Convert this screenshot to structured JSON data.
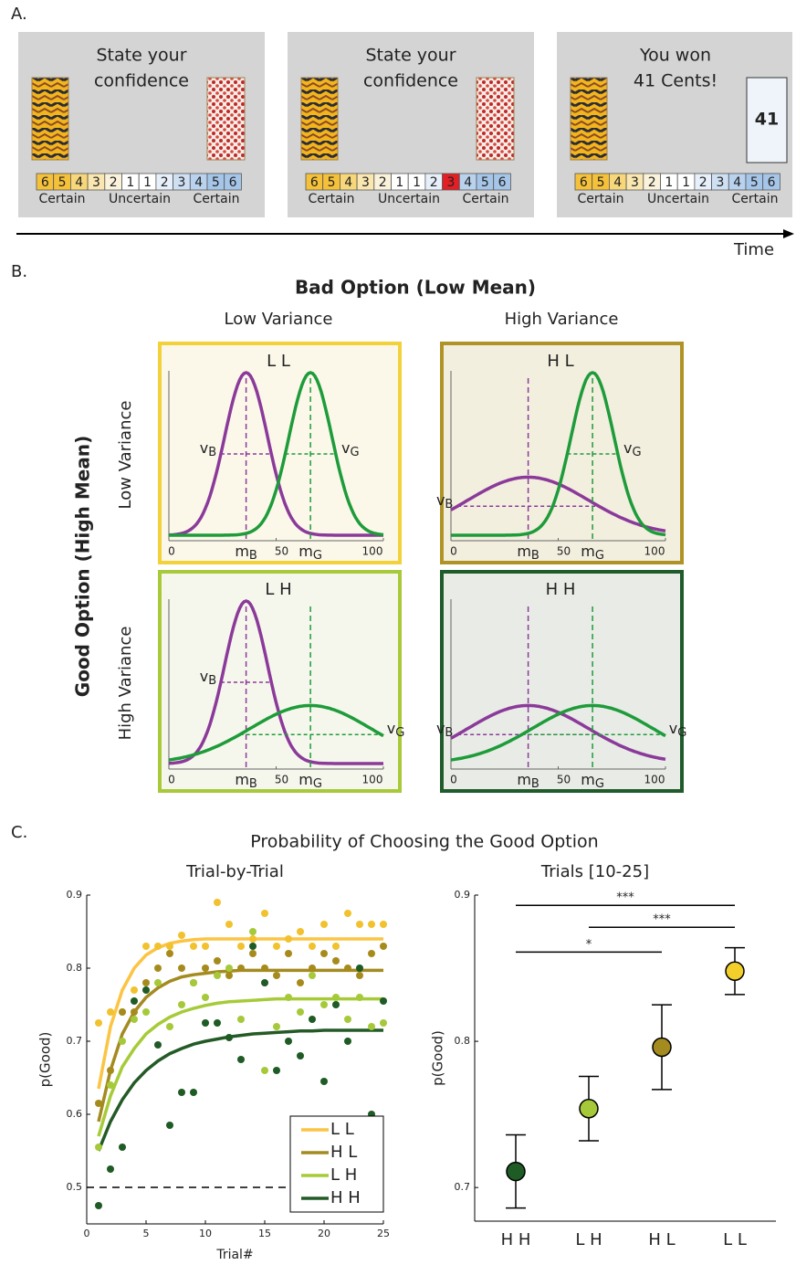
{
  "panel_a": {
    "label": "A.",
    "time": "Time",
    "screens": [
      {
        "lines": [
          "State your",
          "confidence"
        ]
      },
      {
        "lines": [
          "State your",
          "confidence"
        ]
      },
      {
        "lines": [
          "You won",
          "41 Cents!"
        ]
      }
    ],
    "scale": [
      "6",
      "5",
      "4",
      "3",
      "2",
      "1",
      "1",
      "2",
      "3",
      "4",
      "5",
      "6"
    ],
    "scale_labels": [
      "Certain",
      "Uncertain",
      "Certain"
    ],
    "reward": "41"
  },
  "panel_b": {
    "label": "B.",
    "title": "Bad Option (Low Mean)",
    "column_headers": [
      "Low Variance",
      "High Variance"
    ],
    "row_title": "Good Option (High Mean)",
    "row_headers": [
      "Low Variance",
      "High Variance"
    ],
    "xticks": [
      0,
      50,
      100
    ],
    "means": {
      "bad": 36,
      "good": 66
    },
    "symbols": {
      "mean": "m",
      "variance": "v",
      "bad": "B",
      "good": "G"
    },
    "bad_color": "#8b3a9a",
    "good_color": "#1e9b3a",
    "panels": [
      {
        "label": "L L",
        "bad_sd": 10,
        "good_sd": 10,
        "border": "#f2d13a",
        "fill": "#fbf8ea"
      },
      {
        "label": "H L",
        "bad_sd": 28,
        "good_sd": 10,
        "border": "#b09327",
        "fill": "#f3efdf"
      },
      {
        "label": "L H",
        "bad_sd": 10,
        "good_sd": 28,
        "border": "#a8c93a",
        "fill": "#f6f7ec"
      },
      {
        "label": "H H",
        "bad_sd": 28,
        "good_sd": 28,
        "border": "#1f5b2b",
        "fill": "#e9ece6"
      }
    ]
  },
  "panel_c": {
    "label": "C.",
    "title": "Probability of Choosing the Good Option"
  },
  "chart_data": [
    {
      "type": "scatter",
      "title": "Trial-by-Trial",
      "x_label": "Trial#",
      "y_label": "p(Good)",
      "x": [
        1,
        2,
        3,
        4,
        5,
        6,
        7,
        8,
        9,
        10,
        11,
        12,
        13,
        14,
        15,
        16,
        17,
        18,
        19,
        20,
        21,
        22,
        23,
        24,
        25
      ],
      "xlim": [
        0,
        25
      ],
      "xticks": [
        0,
        5,
        10,
        15,
        20,
        25
      ],
      "ylim": [
        0.45,
        0.9
      ],
      "yticks": [
        0.5,
        0.6,
        0.7,
        0.8,
        0.9
      ],
      "reference_line": 0.5,
      "legend": "lower right",
      "series": [
        {
          "name": "L L",
          "color": "#f2c12e",
          "line_color": "#fbc443",
          "values": [
            0.725,
            0.74,
            0.74,
            0.77,
            0.83,
            0.83,
            0.83,
            0.845,
            0.83,
            0.83,
            0.89,
            0.86,
            0.83,
            0.84,
            0.875,
            0.83,
            0.84,
            0.85,
            0.83,
            0.86,
            0.83,
            0.875,
            0.86,
            0.86,
            0.86
          ],
          "fit": [
            0.635,
            0.72,
            0.77,
            0.8,
            0.818,
            0.828,
            0.834,
            0.837,
            0.839,
            0.84,
            0.84,
            0.84,
            0.84,
            0.84,
            0.84,
            0.84,
            0.84,
            0.84,
            0.84,
            0.84,
            0.84,
            0.84,
            0.84,
            0.84,
            0.84
          ]
        },
        {
          "name": "H L",
          "color": "#a68b1c",
          "line_color": "#a38b1f",
          "values": [
            0.615,
            0.66,
            0.74,
            0.74,
            0.78,
            0.8,
            0.82,
            0.8,
            0.78,
            0.8,
            0.81,
            0.79,
            0.8,
            0.82,
            0.8,
            0.79,
            0.82,
            0.78,
            0.8,
            0.82,
            0.81,
            0.8,
            0.79,
            0.82,
            0.83
          ],
          "fit": [
            0.59,
            0.66,
            0.71,
            0.74,
            0.76,
            0.773,
            0.782,
            0.788,
            0.791,
            0.793,
            0.795,
            0.796,
            0.797,
            0.797,
            0.797,
            0.797,
            0.797,
            0.797,
            0.797,
            0.797,
            0.797,
            0.797,
            0.797,
            0.797,
            0.797
          ]
        },
        {
          "name": "L H",
          "color": "#a6c93a",
          "line_color": "#a6cb38",
          "values": [
            0.555,
            0.64,
            0.7,
            0.73,
            0.74,
            0.78,
            0.72,
            0.75,
            0.78,
            0.76,
            0.79,
            0.8,
            0.73,
            0.85,
            0.66,
            0.72,
            0.76,
            0.74,
            0.79,
            0.75,
            0.76,
            0.73,
            0.76,
            0.72,
            0.725
          ],
          "fit": [
            0.57,
            0.625,
            0.665,
            0.69,
            0.71,
            0.723,
            0.733,
            0.74,
            0.745,
            0.749,
            0.752,
            0.754,
            0.755,
            0.756,
            0.757,
            0.758,
            0.758,
            0.758,
            0.758,
            0.758,
            0.758,
            0.758,
            0.758,
            0.758,
            0.758
          ]
        },
        {
          "name": "H H",
          "color": "#1e5b25",
          "line_color": "#245a25",
          "values": [
            0.475,
            0.525,
            0.555,
            0.755,
            0.77,
            0.695,
            0.585,
            0.63,
            0.63,
            0.725,
            0.725,
            0.705,
            0.675,
            0.83,
            0.78,
            0.66,
            0.7,
            0.68,
            0.73,
            0.645,
            0.75,
            0.7,
            0.8,
            0.6,
            0.755
          ],
          "fit": [
            0.55,
            0.59,
            0.62,
            0.643,
            0.66,
            0.673,
            0.683,
            0.69,
            0.696,
            0.7,
            0.703,
            0.706,
            0.708,
            0.71,
            0.711,
            0.712,
            0.713,
            0.714,
            0.714,
            0.715,
            0.715,
            0.715,
            0.715,
            0.715,
            0.715
          ]
        }
      ]
    },
    {
      "type": "errorbar",
      "title": "Trials [10-25]",
      "y_label": "p(Good)",
      "categories": [
        "H H",
        "L H",
        "H L",
        "L L"
      ],
      "values": [
        0.711,
        0.754,
        0.796,
        0.848
      ],
      "errors": [
        0.025,
        0.022,
        0.029,
        0.016
      ],
      "colors": [
        "#1e5b25",
        "#a6c93a",
        "#a38b1f",
        "#f2cf2a"
      ],
      "ylim": [
        0.677,
        0.9
      ],
      "yticks": [
        0.7,
        0.8,
        0.9
      ],
      "significance": [
        {
          "pair": [
            "H H",
            "L L"
          ],
          "y": 0.893,
          "label": "***"
        },
        {
          "pair": [
            "L H",
            "L L"
          ],
          "y": 0.878,
          "label": "***"
        },
        {
          "pair": [
            "H H",
            "H L"
          ],
          "y": 0.861,
          "label": "*"
        }
      ]
    }
  ]
}
